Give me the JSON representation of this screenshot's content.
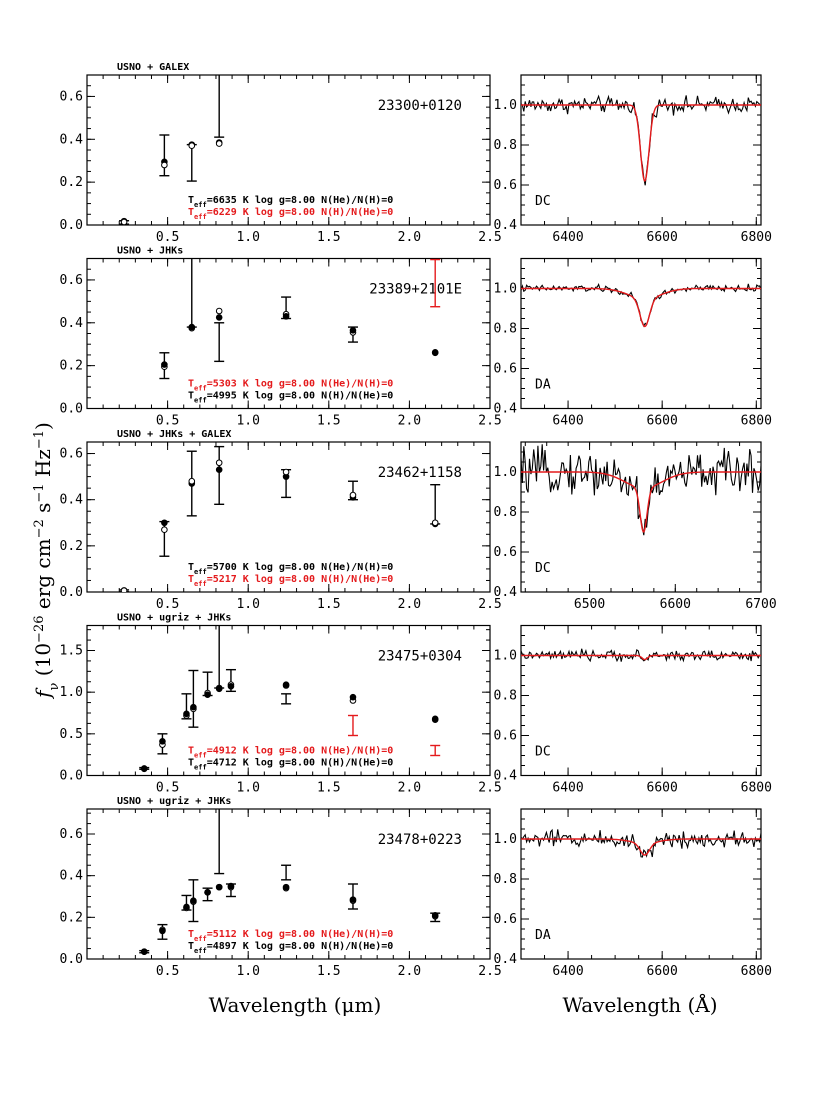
{
  "figure": {
    "ylabel": "f_ν (10^-26 erg cm^-2 s^-1 Hz^-1)",
    "xlabel_sed": "Wavelength (μm)",
    "xlabel_spec": "Wavelength (Å)"
  },
  "colors": {
    "black": "#000000",
    "red": "#e41a1c"
  },
  "chart_data": [
    {
      "type": "scatter",
      "object": "23300+0120",
      "survey_label": "USNO + GALEX",
      "xlim": [
        0,
        2.5
      ],
      "ylim": [
        0,
        0.7
      ],
      "xticks": [
        0.5,
        1.0,
        1.5,
        2.0,
        2.5
      ],
      "yticks": [
        0.0,
        0.2,
        0.4,
        0.6
      ],
      "observed": [
        {
          "x": 0.23,
          "y": 0.012,
          "err": 0.008
        },
        {
          "x": 0.48,
          "y": 0.325,
          "err": 0.095
        },
        {
          "x": 0.65,
          "y": 0.29,
          "err": 0.085
        },
        {
          "x": 0.82,
          "y": 0.56,
          "err": 0.15
        }
      ],
      "model_primary": [
        {
          "x": 0.23,
          "y": 0.014
        },
        {
          "x": 0.48,
          "y": 0.28
        },
        {
          "x": 0.65,
          "y": 0.37
        },
        {
          "x": 0.82,
          "y": 0.38
        }
      ],
      "model_secondary": [
        {
          "x": 0.23,
          "y": 0.018
        },
        {
          "x": 0.48,
          "y": 0.295
        },
        {
          "x": 0.65,
          "y": 0.375
        },
        {
          "x": 0.82,
          "y": 0.385
        }
      ],
      "primary_marker": "open",
      "fits": [
        {
          "text": "T_eff=6635 K  log g=8.00  N(He)/N(H)=0",
          "color": "black"
        },
        {
          "text": "T_eff=6229 K  log g=8.00  N(H)/N(He)=0",
          "color": "red"
        }
      ],
      "spectrum": {
        "class": "DC",
        "xlim": [
          6300,
          6810
        ],
        "ylim": [
          0.4,
          1.15
        ],
        "xticks": [
          6400,
          6600,
          6800
        ],
        "yticks": [
          0.4,
          0.6,
          0.8,
          1.0
        ],
        "line_center": 6563,
        "model_depth": 0.38,
        "model_width": 9,
        "noise": 0.028
      }
    },
    {
      "type": "scatter",
      "object": "23389+2101E",
      "survey_label": "USNO + JHKs",
      "xlim": [
        0,
        2.5
      ],
      "ylim": [
        0,
        0.7
      ],
      "xticks": [
        0.5,
        1.0,
        1.5,
        2.0,
        2.5
      ],
      "yticks": [
        0.0,
        0.2,
        0.4,
        0.6
      ],
      "observed": [
        {
          "x": 0.48,
          "y": 0.2,
          "err": 0.06
        },
        {
          "x": 0.65,
          "y": 0.55,
          "err": 0.17
        },
        {
          "x": 0.82,
          "y": 0.31,
          "err": 0.09
        },
        {
          "x": 1.235,
          "y": 0.47,
          "err": 0.05
        },
        {
          "x": 1.65,
          "y": 0.345,
          "err": 0.035
        },
        {
          "x": 2.16,
          "y": 0.585,
          "err": 0.11,
          "color": "red"
        }
      ],
      "model_primary": [
        {
          "x": 0.48,
          "y": 0.205
        },
        {
          "x": 0.65,
          "y": 0.38
        },
        {
          "x": 0.82,
          "y": 0.425
        },
        {
          "x": 1.235,
          "y": 0.43
        },
        {
          "x": 1.65,
          "y": 0.365
        },
        {
          "x": 2.16,
          "y": 0.26
        }
      ],
      "model_secondary": [
        {
          "x": 0.48,
          "y": 0.195
        },
        {
          "x": 0.65,
          "y": 0.375
        },
        {
          "x": 0.82,
          "y": 0.455
        },
        {
          "x": 1.235,
          "y": 0.44
        },
        {
          "x": 1.65,
          "y": 0.355
        },
        {
          "x": 2.16,
          "y": 0.262
        }
      ],
      "primary_marker": "filled",
      "fits": [
        {
          "text": "T_eff=5303 K  log g=8.00  N(He)/N(H)=0",
          "color": "red"
        },
        {
          "text": "T_eff=4995 K  log g=8.00  N(H)/N(He)=0",
          "color": "black"
        }
      ],
      "spectrum": {
        "class": "DA",
        "xlim": [
          6300,
          6810
        ],
        "ylim": [
          0.4,
          1.15
        ],
        "xticks": [
          6400,
          6600,
          6800
        ],
        "yticks": [
          0.4,
          0.6,
          0.8,
          1.0
        ],
        "line_center": 6563,
        "model_depth": 0.14,
        "model_width": 10,
        "wing_depth": 0.05,
        "wing_width": 35,
        "noise": 0.012
      }
    },
    {
      "type": "scatter",
      "object": "23462+1158",
      "survey_label": "USNO + JHKs + GALEX",
      "xlim": [
        0,
        2.5
      ],
      "ylim": [
        0,
        0.65
      ],
      "xticks": [
        0.5,
        1.0,
        1.5,
        2.0,
        2.5
      ],
      "yticks": [
        0.0,
        0.2,
        0.4,
        0.6
      ],
      "observed": [
        {
          "x": 0.23,
          "y": 0.005,
          "err": 0.004
        },
        {
          "x": 0.48,
          "y": 0.23,
          "err": 0.075
        },
        {
          "x": 0.65,
          "y": 0.47,
          "err": 0.14
        },
        {
          "x": 0.82,
          "y": 0.505,
          "err": 0.125
        },
        {
          "x": 1.235,
          "y": 0.47,
          "err": 0.06
        },
        {
          "x": 1.65,
          "y": 0.44,
          "err": 0.04
        },
        {
          "x": 2.16,
          "y": 0.38,
          "err": 0.085
        }
      ],
      "model_primary": [
        {
          "x": 0.23,
          "y": 0.006
        },
        {
          "x": 0.48,
          "y": 0.27
        },
        {
          "x": 0.65,
          "y": 0.48
        },
        {
          "x": 0.82,
          "y": 0.56
        },
        {
          "x": 1.235,
          "y": 0.52
        },
        {
          "x": 1.65,
          "y": 0.42
        },
        {
          "x": 2.16,
          "y": 0.3
        }
      ],
      "model_secondary": [
        {
          "x": 0.23,
          "y": 0.007
        },
        {
          "x": 0.48,
          "y": 0.3
        },
        {
          "x": 0.65,
          "y": 0.47
        },
        {
          "x": 0.82,
          "y": 0.53
        },
        {
          "x": 1.235,
          "y": 0.5
        },
        {
          "x": 1.65,
          "y": 0.41
        },
        {
          "x": 2.16,
          "y": 0.295
        }
      ],
      "primary_marker": "open",
      "fits": [
        {
          "text": "T_eff=5700 K  log g=8.00  N(He)/N(H)=0",
          "color": "black"
        },
        {
          "text": "T_eff=5217 K  log g=8.00  N(H)/N(He)=0",
          "color": "red"
        }
      ],
      "spectrum": {
        "class": "DC",
        "xlim": [
          6420,
          6700
        ],
        "ylim": [
          0.4,
          1.15
        ],
        "xticks": [
          6500,
          6600,
          6700
        ],
        "yticks": [
          0.4,
          0.6,
          0.8,
          1.0
        ],
        "line_center": 6563,
        "model_depth": 0.22,
        "model_width": 4,
        "wing_depth": 0.08,
        "wing_width": 22,
        "noise": 0.075
      }
    },
    {
      "type": "scatter",
      "object": "23475+0304",
      "survey_label": "USNO + ugriz + JHKs",
      "xlim": [
        0,
        2.5
      ],
      "ylim": [
        0,
        1.8
      ],
      "xticks": [
        0.5,
        1.0,
        1.5,
        2.0,
        2.5
      ],
      "yticks": [
        0.0,
        0.5,
        1.0,
        1.5
      ],
      "observed": [
        {
          "x": 0.355,
          "y": 0.085,
          "err": 0.01
        },
        {
          "x": 0.468,
          "y": 0.38,
          "err": 0.12
        },
        {
          "x": 0.617,
          "y": 0.83,
          "err": 0.15
        },
        {
          "x": 0.66,
          "y": 0.92,
          "err": 0.34
        },
        {
          "x": 0.748,
          "y": 1.1,
          "err": 0.14
        },
        {
          "x": 0.82,
          "y": 1.6,
          "err": 0.55
        },
        {
          "x": 0.893,
          "y": 1.14,
          "err": 0.13
        },
        {
          "x": 1.235,
          "y": 0.92,
          "err": 0.06
        },
        {
          "x": 1.65,
          "y": 0.6,
          "err": 0.12,
          "color": "red"
        },
        {
          "x": 2.16,
          "y": 0.3,
          "err": 0.06,
          "color": "red"
        }
      ],
      "model_primary": [
        {
          "x": 0.355,
          "y": 0.085
        },
        {
          "x": 0.468,
          "y": 0.41
        },
        {
          "x": 0.617,
          "y": 0.74
        },
        {
          "x": 0.66,
          "y": 0.82
        },
        {
          "x": 0.748,
          "y": 0.97
        },
        {
          "x": 0.82,
          "y": 1.04
        },
        {
          "x": 0.893,
          "y": 1.07
        },
        {
          "x": 1.235,
          "y": 1.09
        },
        {
          "x": 1.65,
          "y": 0.94
        },
        {
          "x": 2.16,
          "y": 0.68
        }
      ],
      "model_secondary": [
        {
          "x": 0.355,
          "y": 0.08
        },
        {
          "x": 0.468,
          "y": 0.37
        },
        {
          "x": 0.617,
          "y": 0.72
        },
        {
          "x": 0.66,
          "y": 0.8
        },
        {
          "x": 0.748,
          "y": 0.99
        },
        {
          "x": 0.82,
          "y": 1.05
        },
        {
          "x": 0.893,
          "y": 1.09
        },
        {
          "x": 1.235,
          "y": 1.08
        },
        {
          "x": 1.65,
          "y": 0.9
        },
        {
          "x": 2.16,
          "y": 0.67
        }
      ],
      "primary_marker": "filled",
      "fits": [
        {
          "text": "T_eff=4912 K  log g=8.00  N(He)/N(H)=0",
          "color": "red"
        },
        {
          "text": "T_eff=4712 K  log g=8.00  N(H)/N(He)=0",
          "color": "black"
        }
      ],
      "spectrum": {
        "class": "DC",
        "xlim": [
          6300,
          6810
        ],
        "ylim": [
          0.4,
          1.15
        ],
        "xticks": [
          6400,
          6600,
          6800
        ],
        "yticks": [
          0.4,
          0.6,
          0.8,
          1.0
        ],
        "line_center": 6563,
        "model_depth": 0.02,
        "model_width": 6,
        "noise": 0.018
      }
    },
    {
      "type": "scatter",
      "object": "23478+0223",
      "survey_label": "USNO + ugriz + JHKs",
      "xlim": [
        0,
        2.5
      ],
      "ylim": [
        0,
        0.72
      ],
      "xticks": [
        0.5,
        1.0,
        1.5,
        2.0,
        2.5
      ],
      "yticks": [
        0.0,
        0.2,
        0.4,
        0.6
      ],
      "observed": [
        {
          "x": 0.355,
          "y": 0.035,
          "err": 0.005
        },
        {
          "x": 0.468,
          "y": 0.13,
          "err": 0.035
        },
        {
          "x": 0.617,
          "y": 0.27,
          "err": 0.035
        },
        {
          "x": 0.66,
          "y": 0.28,
          "err": 0.1
        },
        {
          "x": 0.748,
          "y": 0.31,
          "err": 0.03
        },
        {
          "x": 0.82,
          "y": 0.65,
          "err": 0.24
        },
        {
          "x": 0.893,
          "y": 0.33,
          "err": 0.03
        },
        {
          "x": 1.235,
          "y": 0.415,
          "err": 0.035
        },
        {
          "x": 1.65,
          "y": 0.3,
          "err": 0.06
        },
        {
          "x": 2.16,
          "y": 0.2,
          "err": 0.02
        }
      ],
      "model_primary": [
        {
          "x": 0.355,
          "y": 0.035
        },
        {
          "x": 0.468,
          "y": 0.135
        },
        {
          "x": 0.617,
          "y": 0.25
        },
        {
          "x": 0.66,
          "y": 0.28
        },
        {
          "x": 0.748,
          "y": 0.32
        },
        {
          "x": 0.82,
          "y": 0.345
        },
        {
          "x": 0.893,
          "y": 0.35
        },
        {
          "x": 1.235,
          "y": 0.345
        },
        {
          "x": 1.65,
          "y": 0.285
        },
        {
          "x": 2.16,
          "y": 0.21
        }
      ],
      "model_secondary": [
        {
          "x": 0.355,
          "y": 0.035
        },
        {
          "x": 0.468,
          "y": 0.14
        },
        {
          "x": 0.617,
          "y": 0.245
        },
        {
          "x": 0.66,
          "y": 0.275
        },
        {
          "x": 0.748,
          "y": 0.32
        },
        {
          "x": 0.82,
          "y": 0.345
        },
        {
          "x": 0.893,
          "y": 0.345
        },
        {
          "x": 1.235,
          "y": 0.34
        },
        {
          "x": 1.65,
          "y": 0.28
        },
        {
          "x": 2.16,
          "y": 0.205
        }
      ],
      "primary_marker": "filled",
      "fits": [
        {
          "text": "T_eff=5112 K  log g=8.00  N(He)/N(H)=0",
          "color": "red"
        },
        {
          "text": "T_eff=4897 K  log g=8.00  N(H)/N(He)=0",
          "color": "black"
        }
      ],
      "spectrum": {
        "class": "DA",
        "xlim": [
          6300,
          6810
        ],
        "ylim": [
          0.4,
          1.15
        ],
        "xticks": [
          6400,
          6600,
          6800
        ],
        "yticks": [
          0.4,
          0.6,
          0.8,
          1.0
        ],
        "line_center": 6563,
        "model_depth": 0.06,
        "model_width": 10,
        "wing_depth": 0.02,
        "wing_width": 30,
        "noise": 0.03
      }
    }
  ]
}
